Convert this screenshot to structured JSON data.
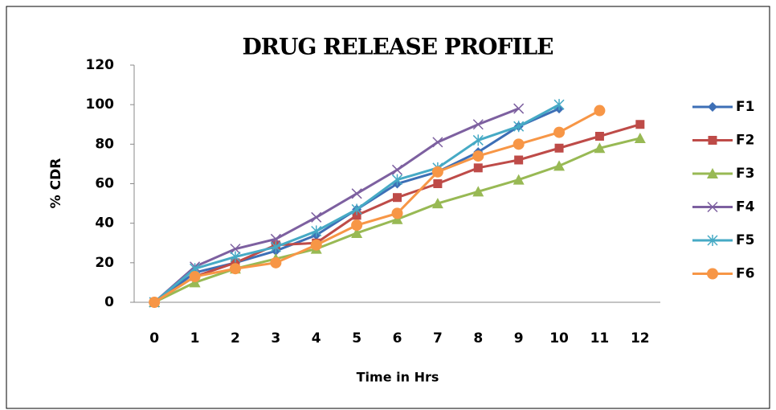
{
  "chart_data": {
    "type": "line",
    "title": "DRUG RELEASE PROFILE",
    "ylabel": "% CDR",
    "xlabel": "Time in Hrs",
    "categories": [
      "0",
      "1",
      "2",
      "3",
      "4",
      "5",
      "6",
      "7",
      "8",
      "9",
      "10",
      "11",
      "12"
    ],
    "ylim": [
      0,
      120
    ],
    "yticks": [
      0,
      20,
      40,
      60,
      80,
      100,
      120
    ],
    "grid": false,
    "legend": "right",
    "series": [
      {
        "name": "F1",
        "color": "#3d6fb6",
        "marker": "diamond",
        "values": [
          0,
          15,
          20,
          26,
          34,
          47,
          60,
          66,
          76,
          89,
          98,
          null,
          null
        ]
      },
      {
        "name": "F2",
        "color": "#be4b48",
        "marker": "square",
        "values": [
          0,
          13,
          20,
          29,
          30,
          44,
          53,
          60,
          68,
          72,
          78,
          84,
          90
        ]
      },
      {
        "name": "F3",
        "color": "#98b954",
        "marker": "triangle",
        "values": [
          0,
          10,
          17,
          22,
          27,
          35,
          42,
          50,
          56,
          62,
          69,
          78,
          83
        ]
      },
      {
        "name": "F4",
        "color": "#7d60a0",
        "marker": "x",
        "values": [
          0,
          18,
          27,
          32,
          43,
          55,
          67,
          81,
          90,
          98,
          null,
          null,
          null
        ]
      },
      {
        "name": "F5",
        "color": "#46aac5",
        "marker": "star",
        "values": [
          0,
          17,
          23,
          28,
          36,
          47,
          62,
          68,
          82,
          89,
          100,
          null,
          null
        ]
      },
      {
        "name": "F6",
        "color": "#f79646",
        "marker": "circle",
        "values": [
          0,
          13,
          17,
          20,
          29,
          39,
          45,
          66,
          74,
          80,
          86,
          97,
          null
        ]
      }
    ]
  }
}
